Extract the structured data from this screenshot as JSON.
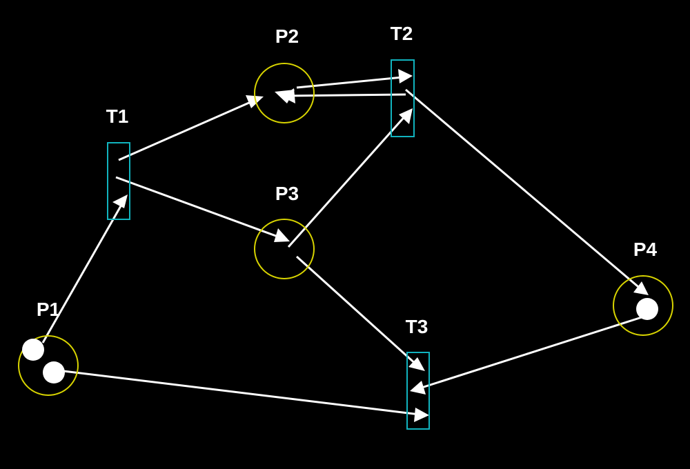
{
  "canvas": {
    "background": "#000000"
  },
  "colors": {
    "place": "#d8d400",
    "transition": "#11b4bf",
    "arc": "#ffffff",
    "token": "#ffffff",
    "label": "#ffffff"
  },
  "places": [
    {
      "id": "p1",
      "label": "P1",
      "tokens": 2
    },
    {
      "id": "p2",
      "label": "P2",
      "tokens": 0
    },
    {
      "id": "p3",
      "label": "P3",
      "tokens": 0
    },
    {
      "id": "p4",
      "label": "P4",
      "tokens": 1
    }
  ],
  "transitions": [
    {
      "id": "t1",
      "label": "T1"
    },
    {
      "id": "t2",
      "label": "T2"
    },
    {
      "id": "t3",
      "label": "T3"
    }
  ],
  "arcs": [
    {
      "from": "P1",
      "to": "T1"
    },
    {
      "from": "T1",
      "to": "P2"
    },
    {
      "from": "T1",
      "to": "P3"
    },
    {
      "from": "P2",
      "to": "T2"
    },
    {
      "from": "T2",
      "to": "P2"
    },
    {
      "from": "P3",
      "to": "T2"
    },
    {
      "from": "T2",
      "to": "P4"
    },
    {
      "from": "P3",
      "to": "T3"
    },
    {
      "from": "P4",
      "to": "T3"
    },
    {
      "from": "P1",
      "to": "T3"
    }
  ]
}
